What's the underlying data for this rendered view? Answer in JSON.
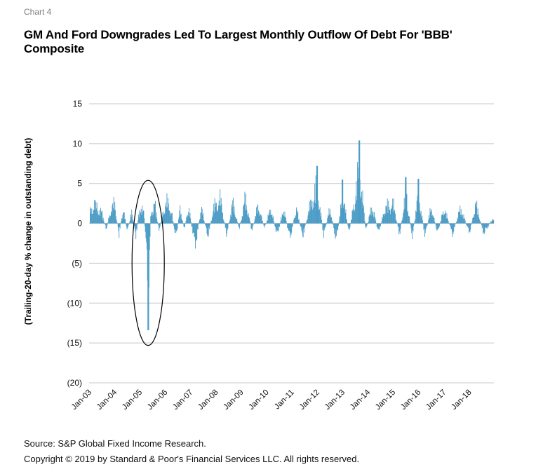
{
  "header": {
    "chart_label": "Chart 4",
    "title": "GM And Ford Downgrades Led To Largest Monthly Outflow Of Debt For 'BBB' Composite"
  },
  "footer": {
    "source": "Source: S&P Global Fixed Income Research.",
    "copyright": "Copyright © 2019 by Standard & Poor's Financial Services LLC. All rights reserved."
  },
  "colors": {
    "bar": "#4b9cc6",
    "grid": "#c8c8c8",
    "highlight": "#000000"
  },
  "chart_data": {
    "type": "bar",
    "title": "GM And Ford Downgrades Led To Largest Monthly Outflow Of Debt For 'BBB' Composite",
    "xlabel": "",
    "ylabel": "(Trailing-20-day % change in outstanding debt)",
    "ylim": [
      -20,
      15
    ],
    "yticks": [
      15,
      10,
      5,
      0,
      -5,
      -10,
      -15,
      -20
    ],
    "ytick_labels": [
      "15",
      "10",
      "5",
      "0",
      "(5)",
      "(10)",
      "(15)",
      "(20)"
    ],
    "x_tick_labels": [
      "Jan-03",
      "Jan-04",
      "Jan-05",
      "Jan-06",
      "Jan-07",
      "Jan-08",
      "Jan-09",
      "Jan-10",
      "Jan-11",
      "Jan-12",
      "Jan-13",
      "Jan-14",
      "Jan-15",
      "Jan-16",
      "Jan-17",
      "Jan-18"
    ],
    "x_range": [
      "2003-01",
      "2019-03"
    ],
    "grid": true,
    "legend": "none",
    "annotation": {
      "type": "ellipse",
      "around": "2005-05",
      "y_range": [
        -15.3,
        5.4
      ]
    },
    "series": [
      {
        "values": [
          {
            "x": "2003-01",
            "y": 2.0
          },
          {
            "x": "2003-03",
            "y": 3.5
          },
          {
            "x": "2003-05",
            "y": 3.0
          },
          {
            "x": "2003-07",
            "y": 1.8
          },
          {
            "x": "2003-09",
            "y": -1.2
          },
          {
            "x": "2003-11",
            "y": 2.5
          },
          {
            "x": "2004-01",
            "y": 3.6
          },
          {
            "x": "2004-03",
            "y": -2.0
          },
          {
            "x": "2004-05",
            "y": 2.8
          },
          {
            "x": "2004-07",
            "y": -1.5
          },
          {
            "x": "2004-09",
            "y": 2.0
          },
          {
            "x": "2004-11",
            "y": -2.5
          },
          {
            "x": "2005-01",
            "y": 3.5
          },
          {
            "x": "2005-03",
            "y": 1.5
          },
          {
            "x": "2005-05",
            "y": -13.4
          },
          {
            "x": "2005-06",
            "y": 2.0
          },
          {
            "x": "2005-08",
            "y": 3.5
          },
          {
            "x": "2005-10",
            "y": -1.5
          },
          {
            "x": "2005-12",
            "y": 2.5
          },
          {
            "x": "2006-02",
            "y": 4.0
          },
          {
            "x": "2006-04",
            "y": 2.0
          },
          {
            "x": "2006-06",
            "y": -3.0
          },
          {
            "x": "2006-08",
            "y": 2.8
          },
          {
            "x": "2006-10",
            "y": -1.0
          },
          {
            "x": "2006-12",
            "y": 3.3
          },
          {
            "x": "2007-03",
            "y": -4.5
          },
          {
            "x": "2007-06",
            "y": 3.0
          },
          {
            "x": "2007-09",
            "y": -2.5
          },
          {
            "x": "2007-12",
            "y": 3.0
          },
          {
            "x": "2008-03",
            "y": 4.5
          },
          {
            "x": "2008-06",
            "y": -2.0
          },
          {
            "x": "2008-09",
            "y": 3.8
          },
          {
            "x": "2008-12",
            "y": -1.0
          },
          {
            "x": "2009-03",
            "y": 4.8
          },
          {
            "x": "2009-06",
            "y": -1.5
          },
          {
            "x": "2009-09",
            "y": 3.5
          },
          {
            "x": "2009-12",
            "y": -1.0
          },
          {
            "x": "2010-03",
            "y": 3.0
          },
          {
            "x": "2010-06",
            "y": -2.5
          },
          {
            "x": "2010-09",
            "y": 3.0
          },
          {
            "x": "2010-12",
            "y": -3.0
          },
          {
            "x": "2011-03",
            "y": 3.0
          },
          {
            "x": "2011-06",
            "y": -2.5
          },
          {
            "x": "2011-09",
            "y": 2.5
          },
          {
            "x": "2012-01",
            "y": 7.2
          },
          {
            "x": "2012-04",
            "y": -2.5
          },
          {
            "x": "2012-07",
            "y": 3.0
          },
          {
            "x": "2012-10",
            "y": -3.5
          },
          {
            "x": "2013-01",
            "y": 5.5
          },
          {
            "x": "2013-04",
            "y": -2.0
          },
          {
            "x": "2013-09",
            "y": 10.4
          },
          {
            "x": "2013-12",
            "y": -1.5
          },
          {
            "x": "2014-03",
            "y": 3.5
          },
          {
            "x": "2014-06",
            "y": -2.0
          },
          {
            "x": "2014-09",
            "y": 3.0
          },
          {
            "x": "2015-01",
            "y": 3.5
          },
          {
            "x": "2015-04",
            "y": -2.0
          },
          {
            "x": "2015-07",
            "y": 5.8
          },
          {
            "x": "2015-10",
            "y": -2.5
          },
          {
            "x": "2016-01",
            "y": 5.6
          },
          {
            "x": "2016-04",
            "y": -2.5
          },
          {
            "x": "2016-07",
            "y": 3.2
          },
          {
            "x": "2016-10",
            "y": -2.0
          },
          {
            "x": "2017-01",
            "y": 3.0
          },
          {
            "x": "2017-05",
            "y": -2.0
          },
          {
            "x": "2017-09",
            "y": 3.0
          },
          {
            "x": "2018-01",
            "y": -2.0
          },
          {
            "x": "2018-04",
            "y": 3.7
          },
          {
            "x": "2018-08",
            "y": -2.0
          },
          {
            "x": "2018-12",
            "y": 1.0
          },
          {
            "x": "2019-03",
            "y": -1.8
          }
        ]
      }
    ]
  }
}
